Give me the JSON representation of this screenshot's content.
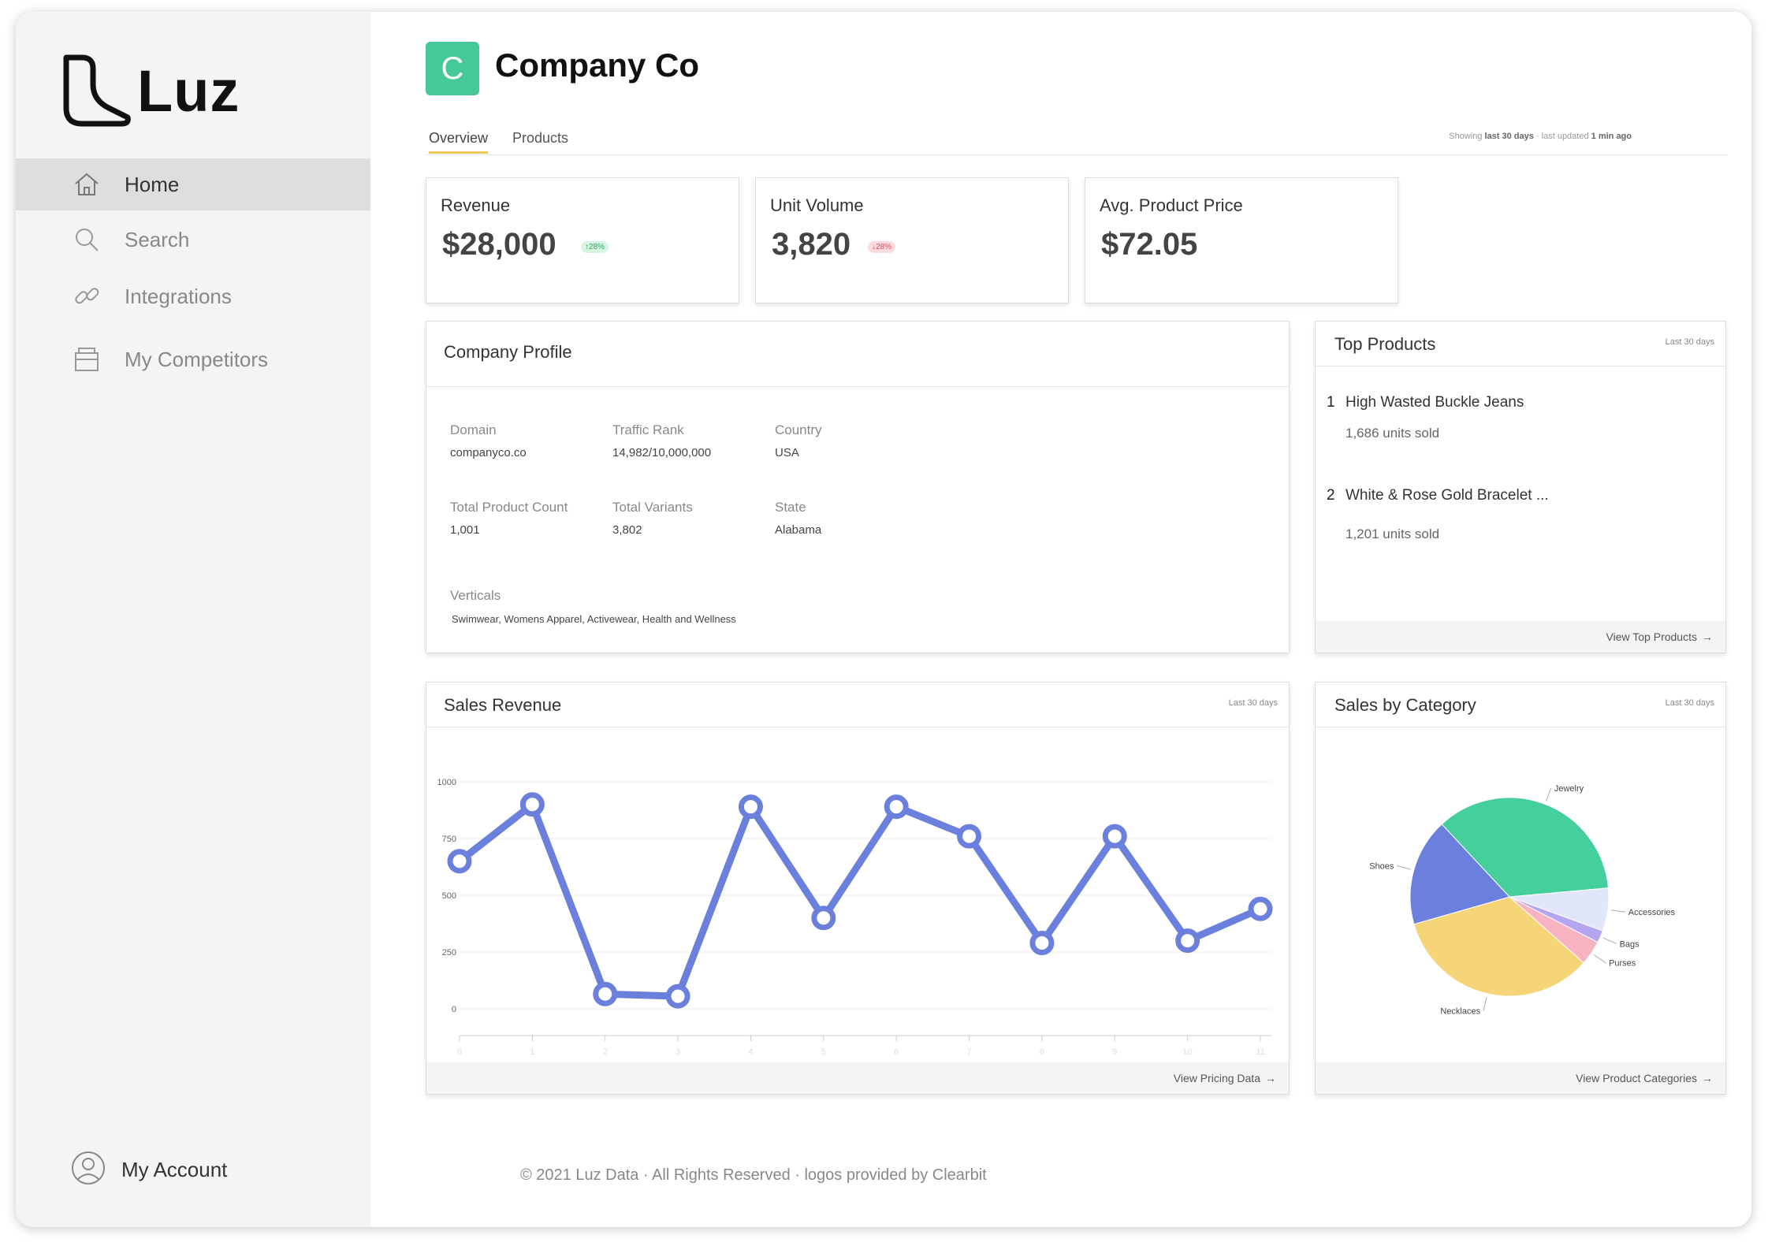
{
  "brand": {
    "name": "Luz"
  },
  "sidebar": {
    "items": [
      {
        "label": "Home",
        "icon": "home-icon",
        "active": true
      },
      {
        "label": "Search",
        "icon": "search-icon",
        "active": false
      },
      {
        "label": "Integrations",
        "icon": "link-icon",
        "active": false
      },
      {
        "label": "My Competitors",
        "icon": "store-icon",
        "active": false
      }
    ],
    "account": {
      "label": "My Account",
      "icon": "user-circle-icon"
    }
  },
  "company": {
    "initial": "C",
    "name": "Company Co",
    "logo_color": "#45c997"
  },
  "tabs": {
    "items": [
      "Overview",
      "Products"
    ],
    "active": "Overview",
    "meta_prefix": "Showing",
    "meta_range": "last 30 days",
    "meta_mid": " · last updated ",
    "meta_updated": "1 min ago"
  },
  "kpis": {
    "revenue": {
      "label": "Revenue",
      "value": "$28,000",
      "badge": "↑28%",
      "trend": "up"
    },
    "unit_volume": {
      "label": "Unit Volume",
      "value": "3,820",
      "badge": "↓28%",
      "trend": "down"
    },
    "avg_price": {
      "label": "Avg. Product Price",
      "value": "$72.05"
    }
  },
  "profile": {
    "title": "Company Profile",
    "domain_label": "Domain",
    "domain": "companyco.co",
    "traffic_label": "Traffic Rank",
    "traffic": "14,982/10,000,000",
    "country_label": "Country",
    "country": "USA",
    "product_count_label": "Total Product Count",
    "product_count": "1,001",
    "variants_label": "Total Variants",
    "variants": "3,802",
    "state_label": "State",
    "state": "Alabama",
    "verticals_label": "Verticals",
    "verticals": "Swimwear, Womens Apparel, Activewear, Health and Wellness"
  },
  "top_products": {
    "title": "Top Products",
    "meta": "Last 30 days",
    "items": [
      {
        "rank": "1",
        "name": "High Wasted Buckle Jeans",
        "units": "1,686 units sold"
      },
      {
        "rank": "2",
        "name": "White & Rose Gold Bracelet ...",
        "units": "1,201 units sold"
      }
    ],
    "link": "View Top Products"
  },
  "sales_revenue": {
    "title": "Sales Revenue",
    "meta": "Last 30 days",
    "link": "View Pricing Data"
  },
  "sales_category": {
    "title": "Sales by Category",
    "meta": "Last 30 days",
    "link": "View Product Categories"
  },
  "footer": {
    "copyright": "© 2021 Luz Data · All Rights Reserved · logos provided by Clearbit"
  },
  "colors": {
    "line": "#6b7fdc",
    "accent_tab": "#f1c85b"
  },
  "chart_data": [
    {
      "type": "line",
      "x": [
        0,
        1,
        2,
        3,
        4,
        5,
        6,
        7,
        8,
        9,
        10,
        11
      ],
      "series": [
        {
          "values": [
            650,
            900,
            65,
            55,
            890,
            400,
            890,
            760,
            290,
            760,
            300,
            440
          ]
        }
      ],
      "ylim": [
        0,
        1000
      ],
      "yticks": [
        "0",
        "250",
        "500",
        "750",
        "1000"
      ],
      "xticks": [
        "0",
        "1",
        "2",
        "3",
        "4",
        "5",
        "6",
        "7",
        "8",
        "9",
        "10",
        "11"
      ],
      "grid": true
    },
    {
      "type": "pie",
      "slices": [
        {
          "label": "Jewelry",
          "value": 35.5,
          "color": "#45cf9c"
        },
        {
          "label": "Accessories",
          "value": 7,
          "color": "#e2e6fb"
        },
        {
          "label": "Bags",
          "value": 2,
          "color": "#b4a6ee"
        },
        {
          "label": "Purses",
          "value": 4,
          "color": "#f7b3c2"
        },
        {
          "label": "Necklaces",
          "value": 34,
          "color": "#f5d577"
        },
        {
          "label": "Shoes",
          "value": 17.5,
          "color": "#6b7fdc"
        }
      ]
    }
  ]
}
